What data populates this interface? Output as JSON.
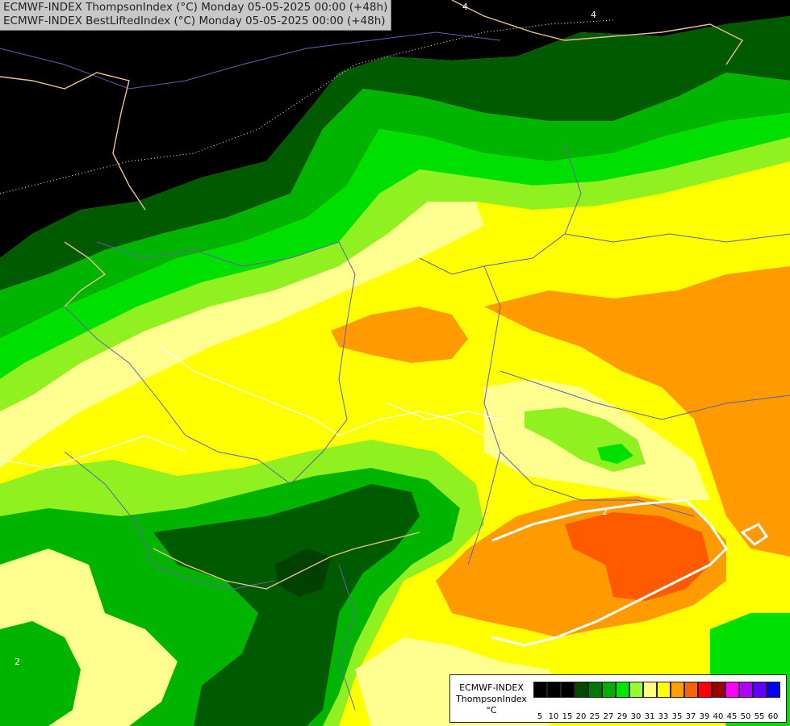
{
  "header": {
    "line1": "ECMWF-INDEX ThompsonIndex (°C) Monday 05-05-2025 00:00 (+48h)",
    "line2": "ECMWF-INDEX BestLiftedIndex (°C) Monday 05-05-2025 00:00 (+48h)"
  },
  "legend": {
    "line1": "ECMWF-INDEX",
    "line2": "ThompsonIndex",
    "line3": "°C",
    "levels": [
      {
        "label": "5",
        "color": "#000000"
      },
      {
        "label": "10",
        "color": "#000000"
      },
      {
        "label": "15",
        "color": "#000000"
      },
      {
        "label": "20",
        "color": "#004a00"
      },
      {
        "label": "25",
        "color": "#007a00"
      },
      {
        "label": "27",
        "color": "#00b000"
      },
      {
        "label": "29",
        "color": "#00e600"
      },
      {
        "label": "30",
        "color": "#90ff2a"
      },
      {
        "label": "31",
        "color": "#ffff80"
      },
      {
        "label": "33",
        "color": "#ffff00"
      },
      {
        "label": "35",
        "color": "#ffa000"
      },
      {
        "label": "37",
        "color": "#ff6000"
      },
      {
        "label": "39",
        "color": "#ff0000"
      },
      {
        "label": "40",
        "color": "#a00000"
      },
      {
        "label": "45",
        "color": "#ff00ff"
      },
      {
        "label": "50",
        "color": "#b000ff"
      },
      {
        "label": "55",
        "color": "#6000ff"
      },
      {
        "label": "60",
        "color": "#0000ff"
      }
    ]
  },
  "contour_labels": [
    "4",
    "4",
    "2",
    "2"
  ],
  "colors": {
    "black": "#000000",
    "dark_green": "#005a00",
    "green": "#00b400",
    "light_green": "#00e000",
    "lime": "#90f020",
    "pale_yellow": "#ffff90",
    "yellow": "#ffff00",
    "orange": "#ff9a00",
    "red_orange": "#ff5a00",
    "border": "#7b7bd0",
    "coast": "#e8c090",
    "contour": "#ffffff"
  }
}
